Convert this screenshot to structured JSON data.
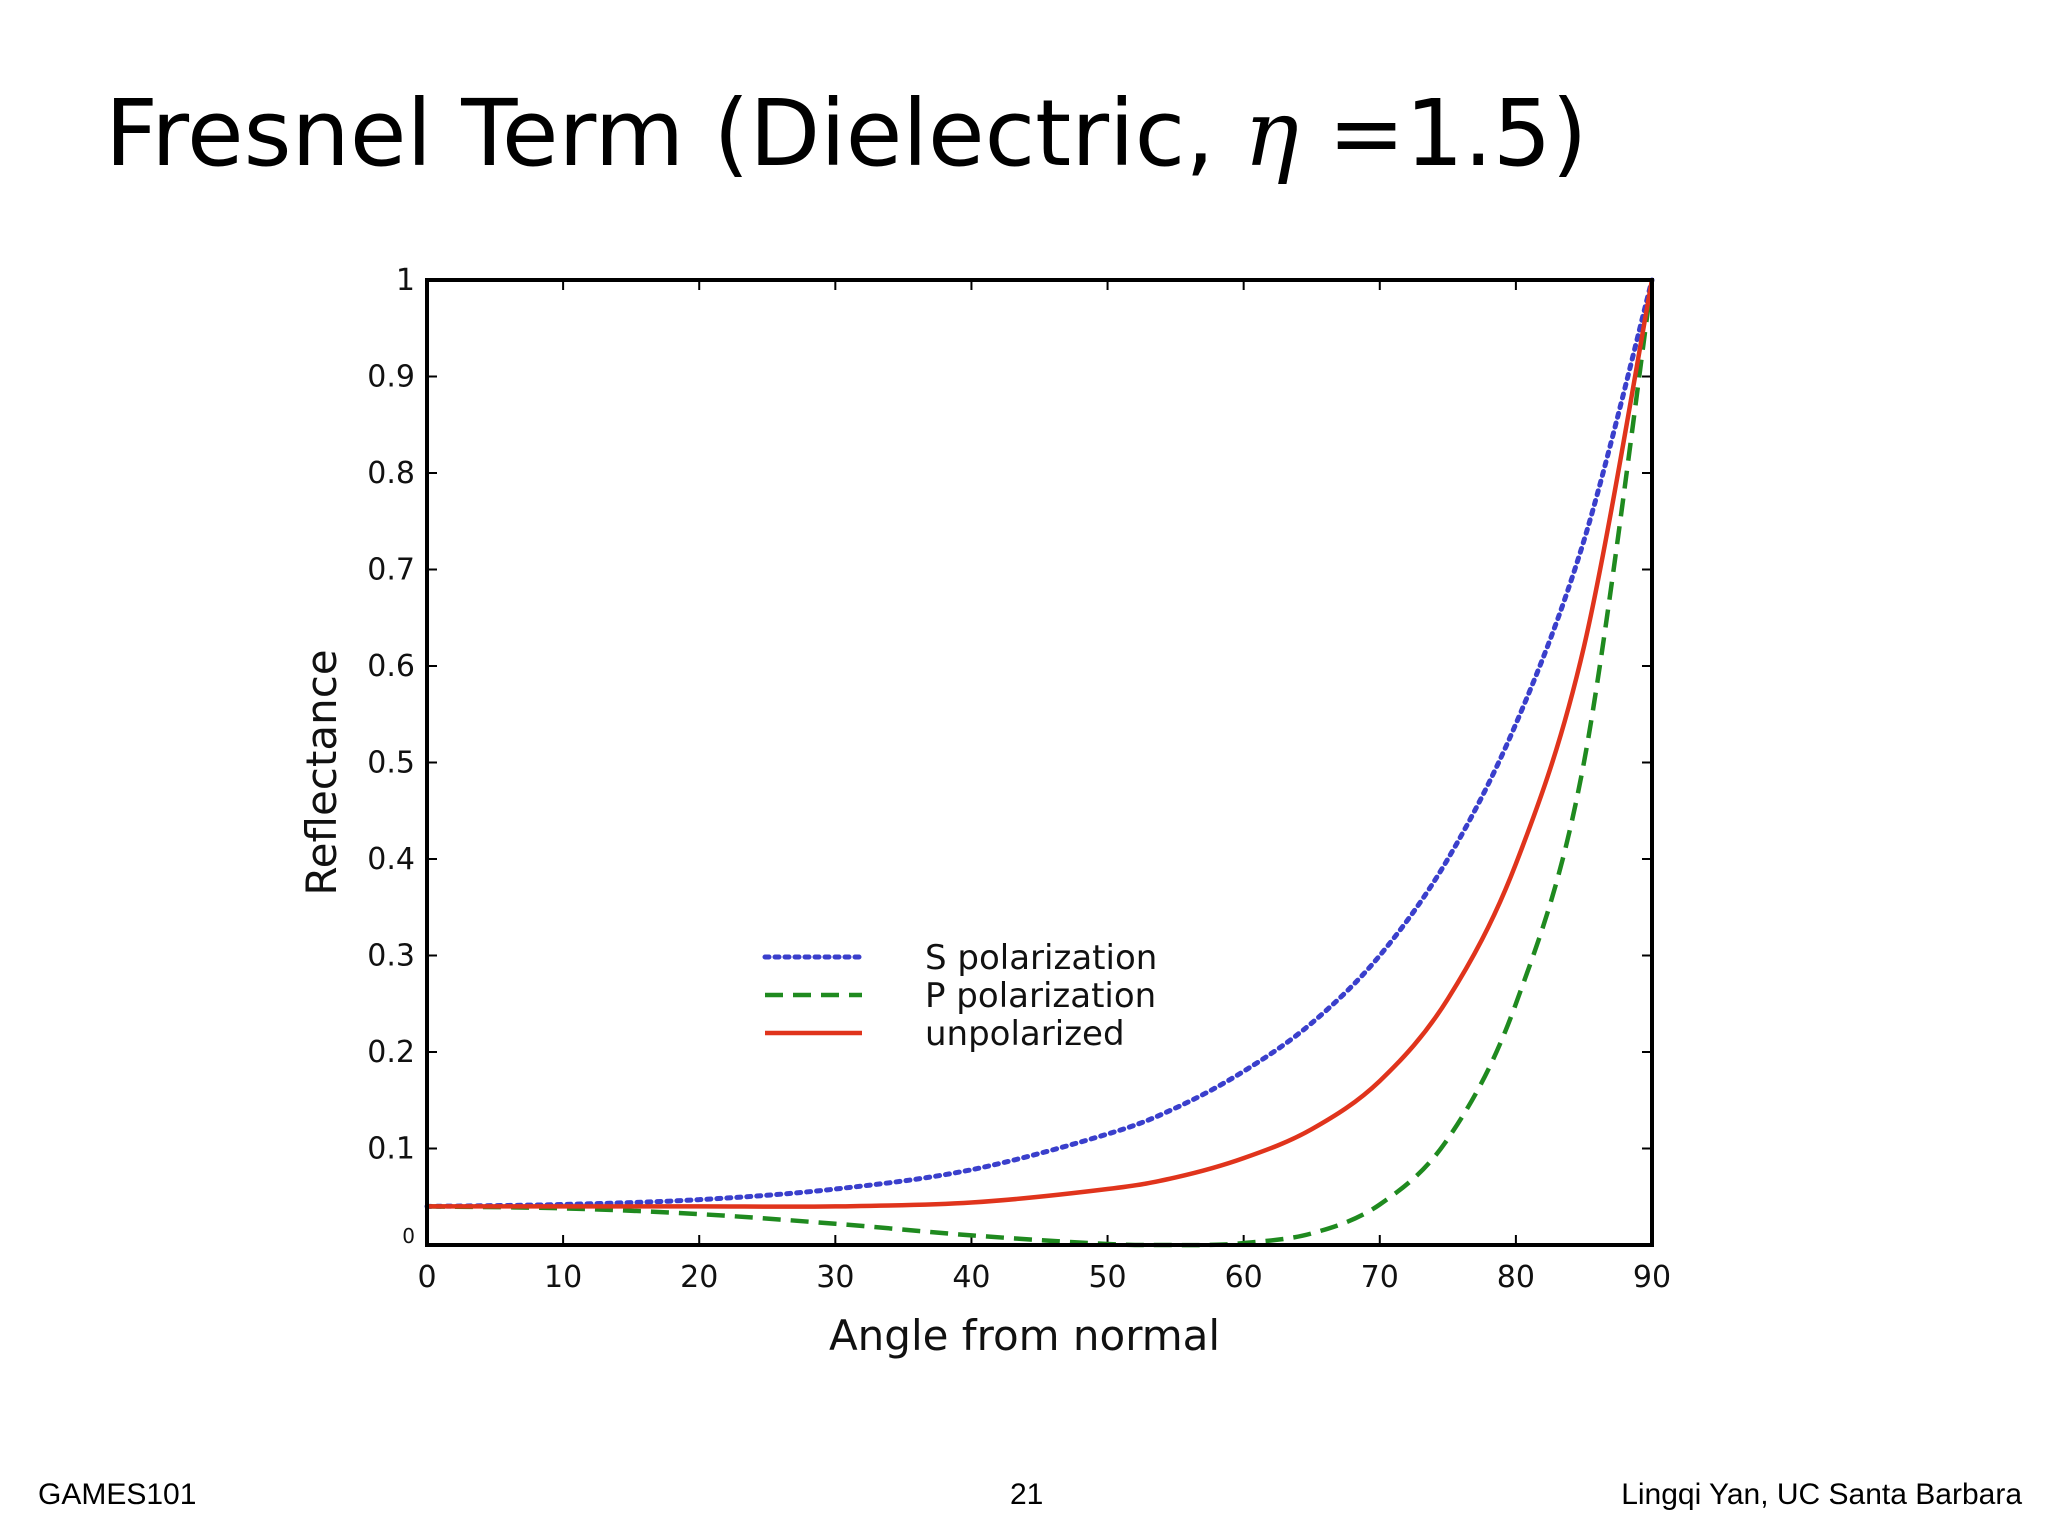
{
  "slide": {
    "title_prefix": "Fresnel Term (Dielectric, ",
    "title_symbol": "η",
    "title_suffix": " =1.5)",
    "footer_left": "GAMES101",
    "footer_page": "21",
    "footer_right": "Lingqi Yan, UC Santa Barbara"
  },
  "chart_data": {
    "type": "line",
    "xlabel": "Angle from normal",
    "ylabel": "Reflectance",
    "xlim": [
      0,
      90
    ],
    "ylim": [
      0,
      1
    ],
    "xticks": [
      0,
      10,
      20,
      30,
      40,
      50,
      60,
      70,
      80,
      90
    ],
    "yticks": [
      0,
      0.1,
      0.2,
      0.3,
      0.4,
      0.5,
      0.6,
      0.7,
      0.8,
      0.9,
      1
    ],
    "ytick_labels": [
      "0",
      "0.1",
      "0.2",
      "0.3",
      "0.4",
      "0.5",
      "0.6",
      "0.7",
      "0.8",
      "0.9",
      "1"
    ],
    "grid": false,
    "legend_position": "center",
    "series": [
      {
        "name": "S polarization",
        "style": "dotted",
        "color": "#3a3fcc",
        "x": [
          0,
          10,
          20,
          30,
          40,
          50,
          55,
          60,
          65,
          70,
          75,
          80,
          85,
          90
        ],
        "y": [
          0.04,
          0.042,
          0.047,
          0.058,
          0.078,
          0.115,
          0.142,
          0.18,
          0.23,
          0.3,
          0.4,
          0.54,
          0.73,
          1.0
        ]
      },
      {
        "name": "P polarization",
        "style": "dashed",
        "color": "#1f8a1f",
        "x": [
          0,
          10,
          20,
          30,
          40,
          50,
          55,
          57,
          60,
          65,
          70,
          75,
          80,
          85,
          90
        ],
        "y": [
          0.04,
          0.038,
          0.032,
          0.022,
          0.01,
          0.001,
          0.0,
          0.0,
          0.002,
          0.012,
          0.042,
          0.11,
          0.25,
          0.5,
          1.0
        ]
      },
      {
        "name": "unpolarized",
        "style": "solid",
        "color": "#e0341c",
        "x": [
          0,
          10,
          20,
          30,
          40,
          50,
          55,
          60,
          65,
          70,
          75,
          80,
          85,
          90
        ],
        "y": [
          0.04,
          0.04,
          0.04,
          0.04,
          0.044,
          0.058,
          0.07,
          0.09,
          0.12,
          0.17,
          0.255,
          0.395,
          0.62,
          1.0
        ]
      }
    ]
  }
}
